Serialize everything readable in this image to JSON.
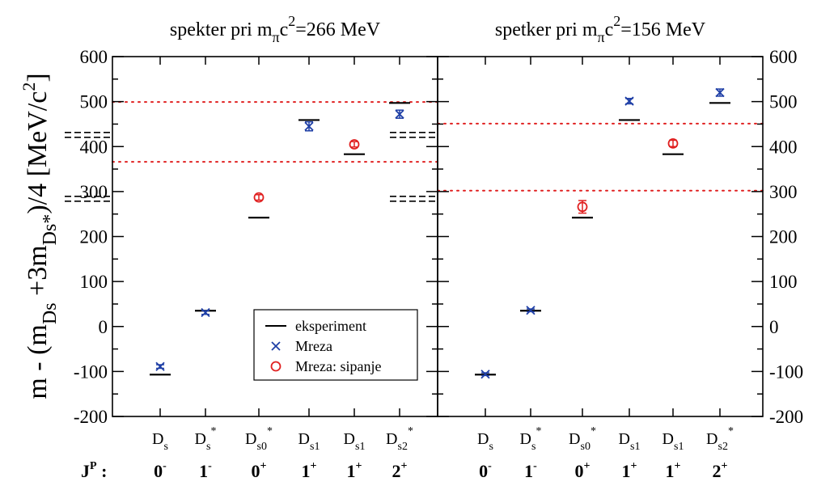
{
  "colors": {
    "experiment": "#000000",
    "lattice": "#1f3fa6",
    "scattering": "#e02020",
    "threshold": "#e02020"
  },
  "chart_data": {
    "type": "scatter",
    "ylabel_parts": {
      "a": "m - (m",
      "a_sub": "Ds",
      "b": " +3m",
      "b_sub": "Ds*",
      "c": ")/4  [MeV/c",
      "c_sup": "2",
      "d": "]"
    },
    "ylim": [
      -200,
      600
    ],
    "yticks": [
      "600",
      "500",
      "400",
      "300",
      "200",
      "100",
      "0",
      "-100",
      "-200"
    ],
    "grid": false,
    "legend": {
      "position": "lower-center",
      "entries": [
        {
          "key": "experiment",
          "marker": "line",
          "label": "eksperiment"
        },
        {
          "key": "lattice",
          "marker": "x",
          "label": "Mreza"
        },
        {
          "key": "scattering",
          "marker": "circle",
          "label": "Mreza: sipanje"
        }
      ]
    },
    "jp_label": {
      "main": "J",
      "sup": "P",
      "tail": " :"
    },
    "states": [
      {
        "base": "D",
        "sub": "s",
        "sup": "",
        "jp": "0",
        "jp_sup": "-"
      },
      {
        "base": "D",
        "sub": "s",
        "sup": "*",
        "jp": "1",
        "jp_sup": "-"
      },
      {
        "base": "D",
        "sub": "s0",
        "sup": "*",
        "jp": "0",
        "jp_sup": "+"
      },
      {
        "base": "D",
        "sub": "s1",
        "sup": "",
        "jp": "1",
        "jp_sup": "+"
      },
      {
        "base": "D",
        "sub": "s1",
        "sup": "",
        "jp": "1",
        "jp_sup": "+"
      },
      {
        "base": "D",
        "sub": "s2",
        "sup": "*",
        "jp": "2",
        "jp_sup": "+"
      }
    ],
    "panels": [
      {
        "title_parts": {
          "a": "spekter pri m",
          "sub": "π",
          "b": "c",
          "sup": "2",
          "c": "=266 MeV"
        },
        "experiment": [
          -107,
          35,
          242,
          459,
          383,
          497
        ],
        "lattice": [
          {
            "state": 0,
            "y": -89,
            "err": 4
          },
          {
            "state": 1,
            "y": 31,
            "err": 4
          },
          {
            "state": 3,
            "y": 445,
            "err": 10
          },
          {
            "state": 5,
            "y": 472,
            "err": 9
          }
        ],
        "scattering": [
          {
            "state": 2,
            "y": 287,
            "err": 6
          },
          {
            "state": 4,
            "y": 405,
            "err": 6
          }
        ],
        "thresholds": [
          499,
          366
        ],
        "dashed_thresholds": [
          426,
          284
        ]
      },
      {
        "title_parts": {
          "a": "spetker pri m",
          "sub": "π",
          "b": "c",
          "sup": "2",
          "c": "=156 MeV"
        },
        "experiment": [
          -107,
          35,
          242,
          459,
          383,
          497
        ],
        "lattice": [
          {
            "state": 0,
            "y": -106,
            "err": 3
          },
          {
            "state": 1,
            "y": 36,
            "err": 3
          },
          {
            "state": 3,
            "y": 501,
            "err": 6
          },
          {
            "state": 5,
            "y": 520,
            "err": 8
          }
        ],
        "scattering": [
          {
            "state": 2,
            "y": 266,
            "err": 14
          },
          {
            "state": 4,
            "y": 407,
            "err": 7
          }
        ],
        "thresholds": [
          451,
          302
        ],
        "dashed_thresholds": [
          426,
          284
        ]
      }
    ]
  }
}
